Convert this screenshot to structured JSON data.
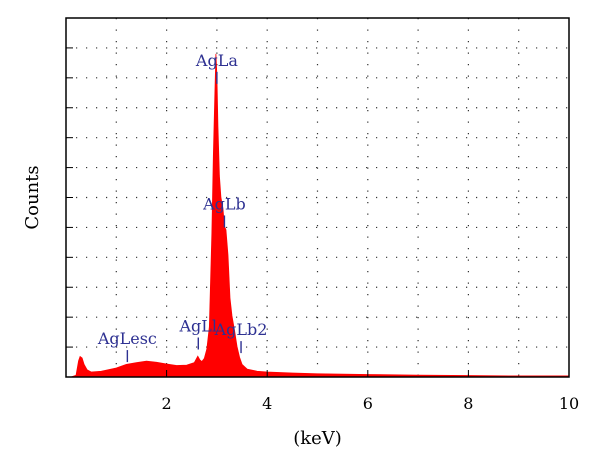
{
  "chart_data": {
    "type": "area",
    "title": "",
    "xlabel": "(keV)",
    "ylabel": "Counts",
    "xlim": [
      0,
      10
    ],
    "ylim": [
      0,
      100
    ],
    "x_ticks": [
      2,
      4,
      6,
      8,
      10
    ],
    "y_tick_labels": [],
    "y_grid_count": 11,
    "grid": "dotted",
    "fill_color": "#ff0000",
    "label_color": "#2e3192",
    "series": [
      {
        "values_note": "",
        "x": [
          0.1,
          0.2,
          0.25,
          0.28,
          0.32,
          0.36,
          0.42,
          0.5,
          0.7,
          1.0,
          1.2,
          1.4,
          1.6,
          1.8,
          2.0,
          2.2,
          2.4,
          2.55,
          2.62,
          2.66,
          2.7,
          2.75,
          2.8,
          2.85,
          2.9,
          2.93,
          2.96,
          2.98,
          3.0,
          3.02,
          3.05,
          3.08,
          3.12,
          3.15,
          3.18,
          3.22,
          3.26,
          3.3,
          3.35,
          3.4,
          3.45,
          3.5,
          3.6,
          3.8,
          4.0,
          4.5,
          5.0,
          5.5,
          6.0,
          7.0,
          8.0,
          9.0,
          10.0
        ],
        "y": [
          0,
          0.5,
          4.5,
          5.7,
          5.3,
          3.5,
          2.0,
          1.4,
          1.6,
          2.5,
          3.5,
          4.0,
          4.4,
          4.1,
          3.6,
          3.2,
          3.3,
          4.0,
          5.8,
          4.8,
          4.3,
          5.2,
          7.8,
          14.0,
          40.0,
          62.0,
          79.0,
          90.0,
          84.0,
          70.0,
          56.0,
          50.0,
          47.0,
          42.0,
          41.0,
          34.0,
          22.0,
          17.0,
          13.0,
          8.5,
          5.5,
          3.5,
          2.2,
          1.6,
          1.4,
          1.1,
          0.9,
          0.8,
          0.7,
          0.5,
          0.4,
          0.3,
          0.3
        ]
      }
    ],
    "peak_labels": [
      {
        "text": "AgLa",
        "x": 3.0,
        "y": 85
      },
      {
        "text": "AgLb",
        "x": 3.15,
        "y": 45
      },
      {
        "text": "AgLb2",
        "x": 3.48,
        "y": 10
      },
      {
        "text": "AgLl",
        "x": 2.63,
        "y": 11
      },
      {
        "text": "AgLesc",
        "x": 1.22,
        "y": 7.5
      }
    ]
  }
}
